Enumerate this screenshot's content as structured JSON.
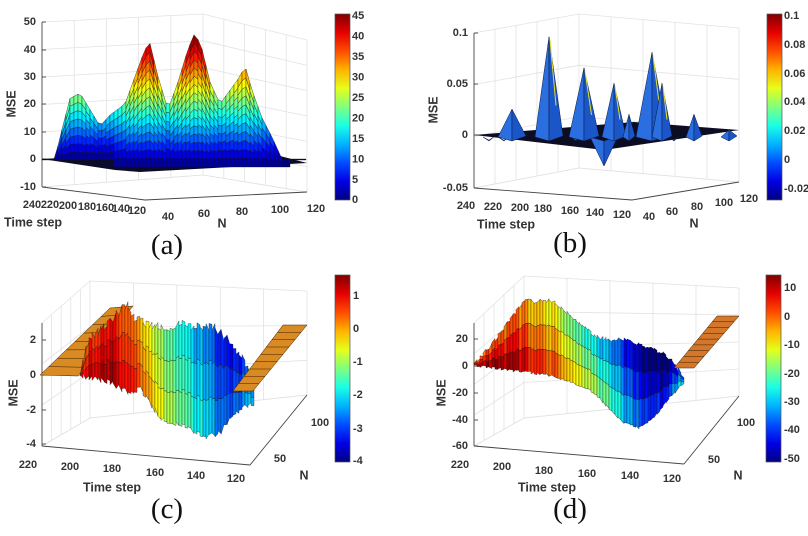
{
  "chart_data": [
    {
      "panel": "(a)",
      "type": "surface",
      "zlabel": "MSE",
      "xlabel": "Time step",
      "ylabel": "N",
      "zlim": [
        -10,
        50
      ],
      "z_ticks": [
        "50",
        "40",
        "30",
        "20",
        "10",
        "0",
        "-10"
      ],
      "time_ticks": [
        "240",
        "220",
        "200",
        "180",
        "160",
        "140",
        "120"
      ],
      "n_ticks": [
        "40",
        "60",
        "80",
        "100",
        "120"
      ],
      "colormap": "jet",
      "colorbar_range": [
        0,
        45
      ],
      "colorbar_ticks": [
        "45",
        "40",
        "35",
        "30",
        "25",
        "20",
        "15",
        "10",
        "5",
        "0"
      ],
      "approx_peak_mse": [
        24,
        42,
        46,
        34
      ],
      "grid": true
    },
    {
      "panel": "(b)",
      "type": "surface",
      "zlabel": "MSE",
      "xlabel": "Time step",
      "ylabel": "N",
      "zlim": [
        -0.05,
        0.1
      ],
      "z_ticks": [
        "0.1",
        "0.05",
        "0",
        "-0.05"
      ],
      "time_ticks": [
        "240",
        "220",
        "200",
        "180",
        "160",
        "140",
        "120"
      ],
      "n_ticks": [
        "40",
        "60",
        "80",
        "100",
        "120"
      ],
      "colormap": "jet",
      "colorbar_range": [
        -0.028,
        0.1
      ],
      "colorbar_ticks": [
        "0.1",
        "0.08",
        "0.06",
        "0.04",
        "0.02",
        "0",
        "-0.02"
      ],
      "approx_peak_mse": [
        0.025,
        0.095,
        0.065,
        0.05,
        0.08,
        0.05,
        0.02,
        -0.03
      ],
      "grid": true
    },
    {
      "panel": "(c)",
      "type": "surface",
      "zlabel": "MSE",
      "xlabel": "Time step",
      "ylabel": "N",
      "zlim": [
        -4,
        2
      ],
      "z_ticks": [
        "2",
        "0",
        "-2",
        "-4"
      ],
      "time_ticks": [
        "220",
        "200",
        "180",
        "160",
        "140",
        "120"
      ],
      "n_ticks": [
        "50",
        "100"
      ],
      "colormap": "jet",
      "colorbar_range": [
        -4,
        1.6
      ],
      "colorbar_ticks": [
        "1",
        "0",
        "-1",
        "-2",
        "-3",
        "-4"
      ],
      "approx_value_trend": [
        0.8,
        1.2,
        0.5,
        -0.5,
        -1.5,
        -2.3,
        -3.2,
        -2.5
      ],
      "grid": true
    },
    {
      "panel": "(d)",
      "type": "surface",
      "zlabel": "MSE",
      "xlabel": "Time step",
      "ylabel": "N",
      "zlim": [
        -60,
        20
      ],
      "z_ticks": [
        "20",
        "0",
        "-20",
        "-40",
        "-60"
      ],
      "time_ticks": [
        "220",
        "200",
        "180",
        "160",
        "140",
        "120"
      ],
      "n_ticks": [
        "50",
        "100"
      ],
      "colormap": "jet",
      "colorbar_range": [
        -52,
        15
      ],
      "colorbar_ticks": [
        "10",
        "0",
        "-10",
        "-20",
        "-30",
        "-40",
        "-50"
      ],
      "approx_value_trend": [
        5,
        8,
        5,
        0,
        -5,
        -12,
        -20,
        -28,
        -38,
        -45,
        -48,
        -30
      ],
      "grid": true
    }
  ]
}
